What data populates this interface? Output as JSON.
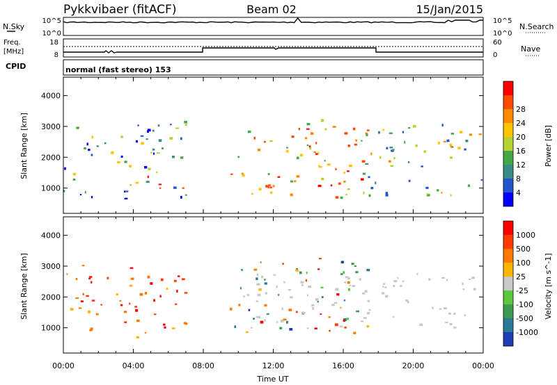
{
  "header": {
    "station": "Pykkvibaer (fitACF)",
    "beam": "Beam 02",
    "date": "15/Jan/2015"
  },
  "noise_panel": {
    "left_label": "N.Sky",
    "right_label": "N.Search",
    "left_ticks": [
      "10^5",
      "10^0"
    ],
    "right_ticks": [
      "10^5",
      "10^0"
    ]
  },
  "freq_panel": {
    "left_label_1": "Freq.",
    "left_label_2": "[MHz]",
    "right_label": "Nave",
    "left_ticks": [
      "18",
      "8"
    ],
    "right_ticks": [
      "60",
      "0"
    ]
  },
  "cpid_panel": {
    "label": "CPID",
    "text": "normal (fast stereo) 153"
  },
  "chart_data": [
    {
      "type": "heatmap",
      "title": "",
      "ylabel": "Slant Range [km]",
      "xlabel": "",
      "ylim": [
        180,
        4600
      ],
      "xlim": [
        0,
        24
      ],
      "y_ticks": [
        1000,
        2000,
        3000,
        4000
      ],
      "colorbar": {
        "label": "Power [dB]",
        "ticks": [
          "4",
          "8",
          "12",
          "16",
          "20",
          "24",
          "28"
        ],
        "colors": [
          "#0000ff",
          "#2255cc",
          "#3a8a8a",
          "#44a844",
          "#b4d232",
          "#ffc300",
          "#ff8a00",
          "#ff4a00",
          "#ff0000"
        ]
      },
      "regions": [
        {
          "t0": 0.0,
          "t1": 7.0,
          "r0": 600,
          "r1": 3200,
          "level": "low-mid"
        },
        {
          "t0": 4.8,
          "t1": 6.8,
          "r0": 900,
          "r1": 1500,
          "level": "high"
        },
        {
          "t0": 9.5,
          "t1": 17.5,
          "r0": 700,
          "r1": 3300,
          "level": "mid-high"
        },
        {
          "t0": 11.5,
          "t1": 15.5,
          "r0": 900,
          "r1": 1400,
          "level": "high"
        },
        {
          "t0": 17.0,
          "t1": 24.0,
          "r0": 800,
          "r1": 3200,
          "level": "mid"
        }
      ]
    },
    {
      "type": "heatmap",
      "title": "",
      "ylabel": "Slant Range [km]",
      "xlabel": "Time UT",
      "ylim": [
        180,
        4600
      ],
      "xlim": [
        0,
        24
      ],
      "y_ticks": [
        1000,
        2000,
        3000,
        4000
      ],
      "x_tick_labels": [
        "00:00",
        "04:00",
        "08:00",
        "12:00",
        "16:00",
        "20:00",
        "00:00"
      ],
      "colorbar": {
        "label": "Velocity [m s^-1]",
        "ticks": [
          "1000",
          "500",
          "100",
          "25",
          "-25",
          "-100",
          "-500",
          "-1000"
        ],
        "colors": [
          "#1e3cb4",
          "#2a7a96",
          "#3c9b50",
          "#5ac83c",
          "#c8c8c8",
          "#ffb400",
          "#ff7800",
          "#ff3c00",
          "#ff0000"
        ]
      },
      "regions": [
        {
          "t0": 0.0,
          "t1": 7.0,
          "r0": 700,
          "r1": 3100,
          "level": "negative"
        },
        {
          "t0": 9.5,
          "t1": 17.5,
          "r0": 800,
          "r1": 3300,
          "level": "mixed"
        },
        {
          "t0": 10.0,
          "t1": 23.5,
          "r0": 1000,
          "r1": 2800,
          "level": "ground-scatter"
        }
      ]
    }
  ]
}
